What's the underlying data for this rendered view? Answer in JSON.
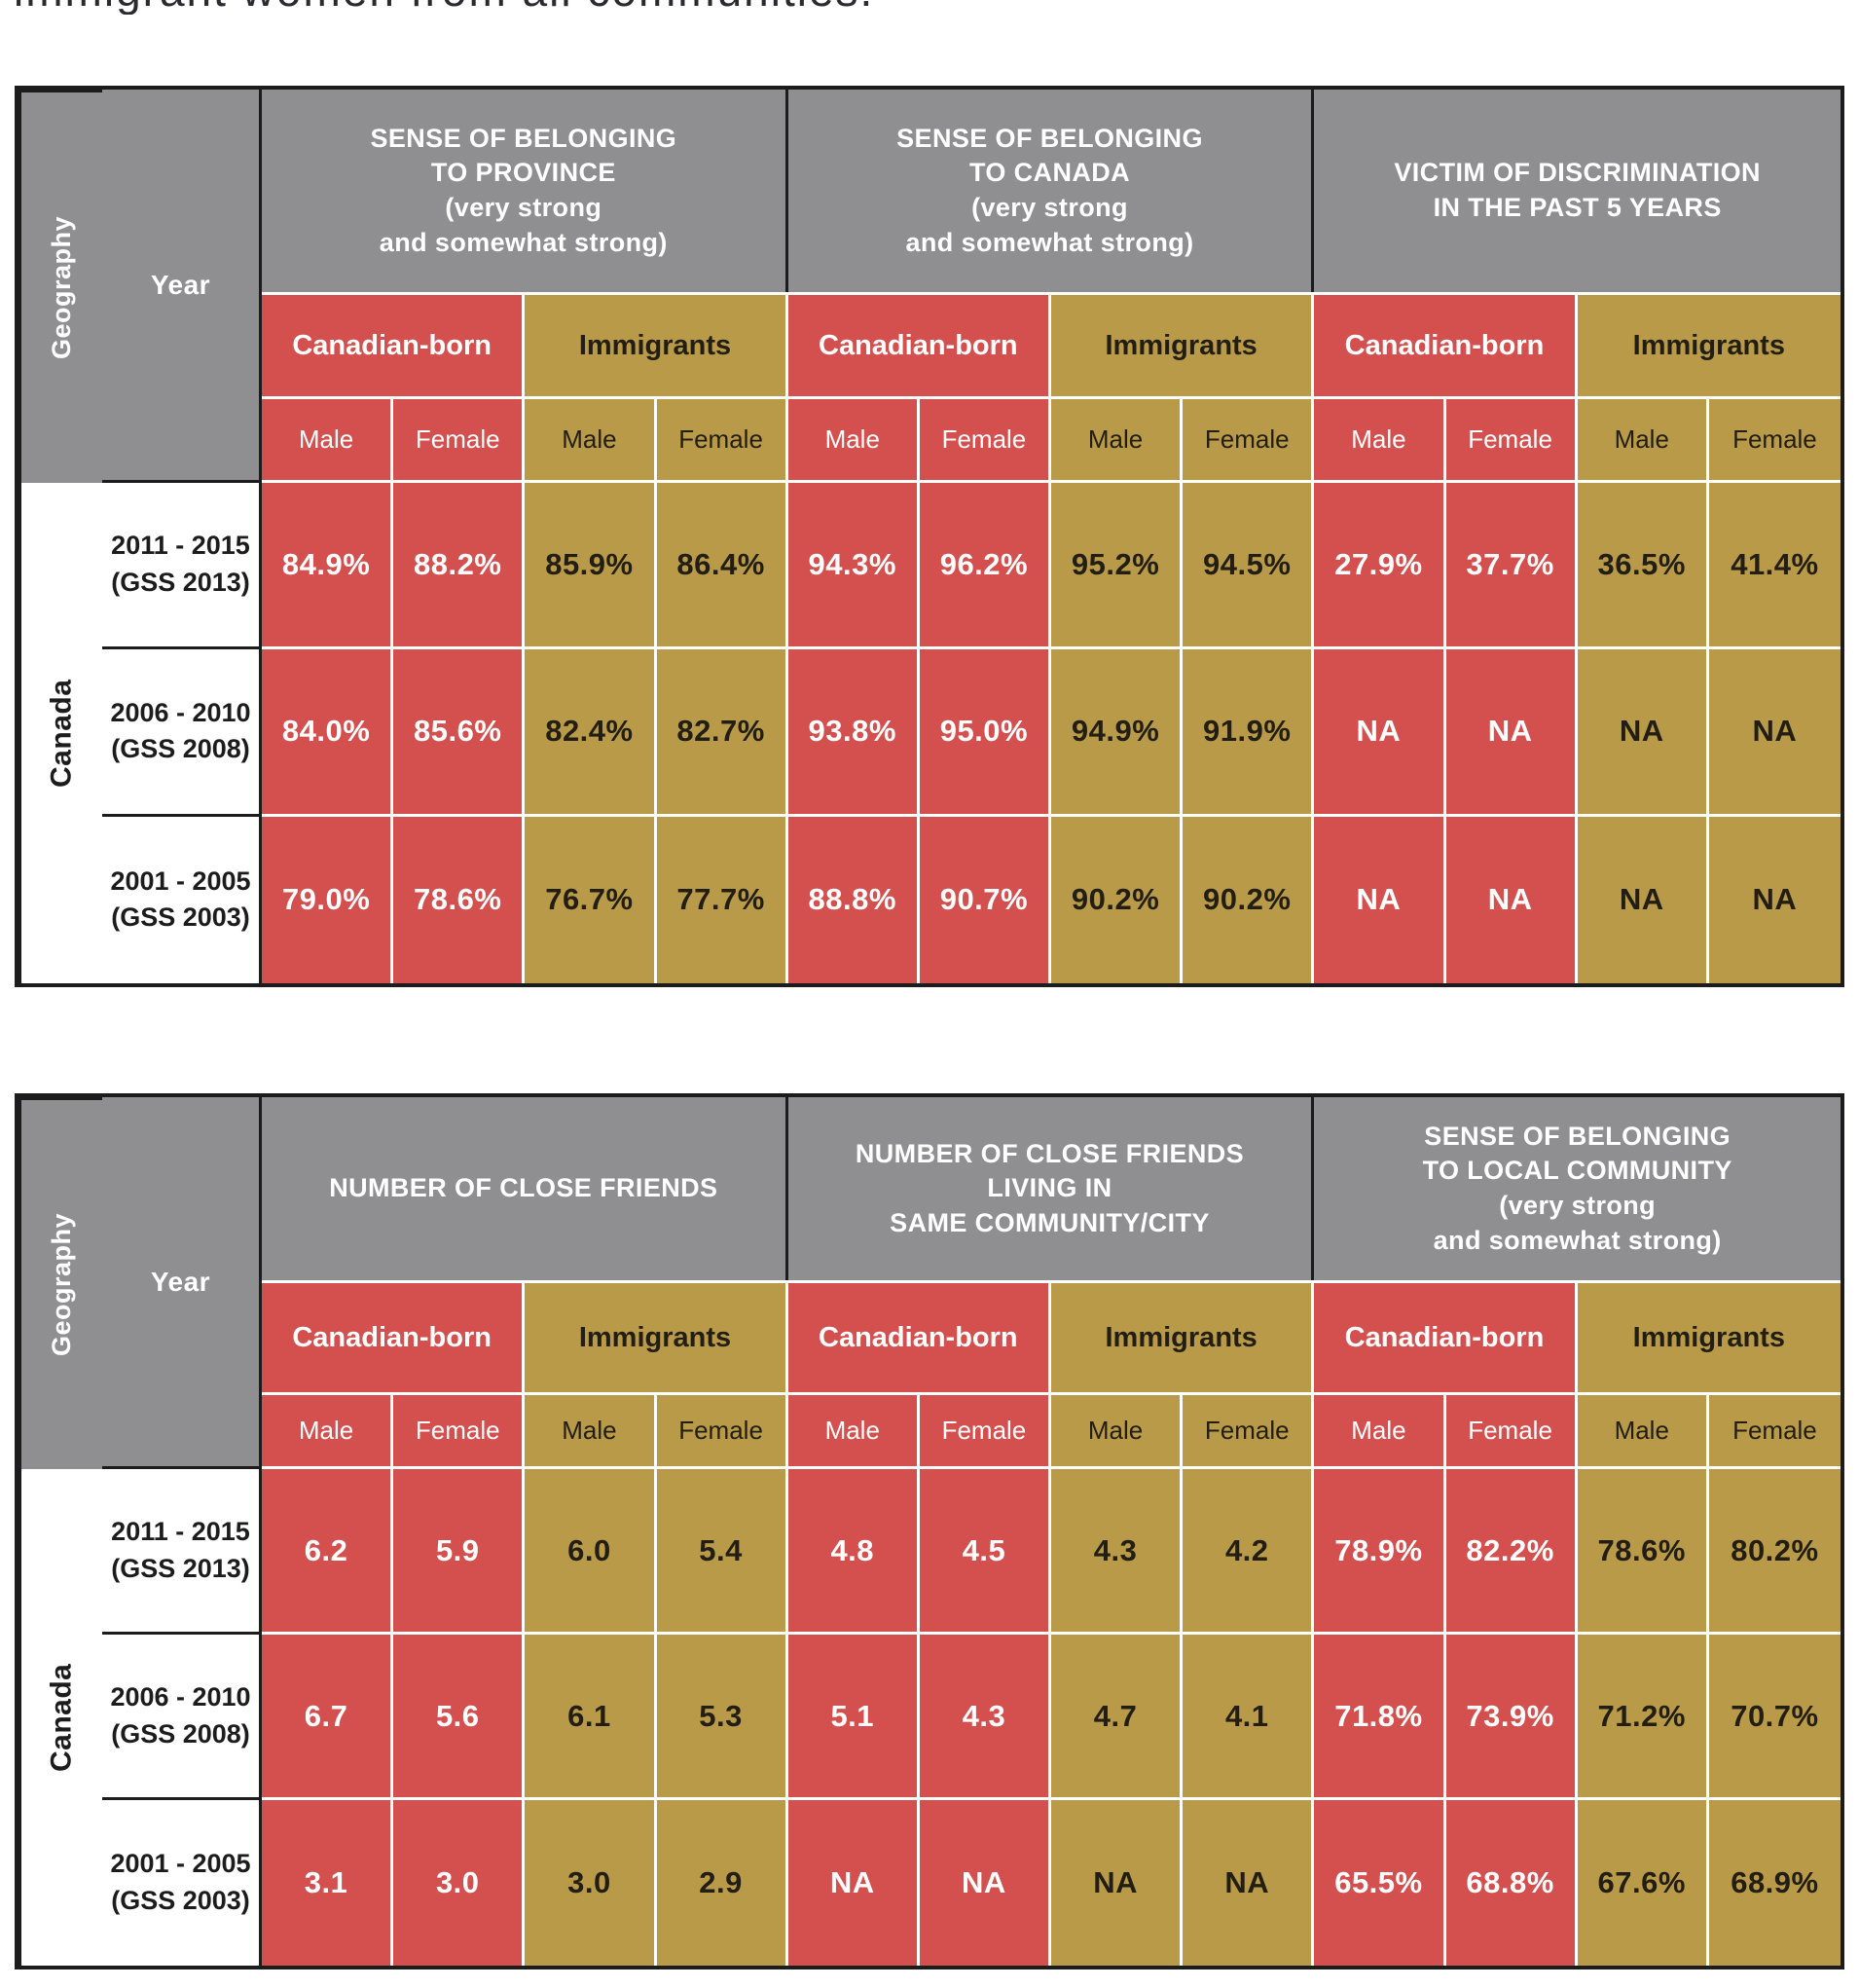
{
  "intro_text": "immigrant women from all communities.",
  "colors": {
    "header_gray": "#8F8E90",
    "canadian_born_red": "#D3504E",
    "immigrants_gold": "#B89A48",
    "grid_black": "#1C1C1C",
    "divider_white": "#FFFFFF"
  },
  "shared": {
    "geography_header": "Geography",
    "year_header": "Year",
    "geography_value": "Canada",
    "origin_labels": [
      "Canadian-born",
      "Immigrants"
    ],
    "sex_labels": [
      "Male",
      "Female"
    ]
  },
  "tables": [
    {
      "groups": [
        "SENSE OF BELONGING\nTO PROVINCE\n(very strong\nand somewhat strong)",
        "SENSE OF BELONGING\nTO CANADA\n(very strong\nand somewhat strong)",
        "VICTIM OF DISCRIMINATION\nIN THE PAST 5 YEARS"
      ],
      "rows": [
        {
          "year": "2011 - 2015\n(GSS 2013)",
          "values": [
            "84.9%",
            "88.2%",
            "85.9%",
            "86.4%",
            "94.3%",
            "96.2%",
            "95.2%",
            "94.5%",
            "27.9%",
            "37.7%",
            "36.5%",
            "41.4%"
          ]
        },
        {
          "year": "2006 - 2010\n(GSS 2008)",
          "values": [
            "84.0%",
            "85.6%",
            "82.4%",
            "82.7%",
            "93.8%",
            "95.0%",
            "94.9%",
            "91.9%",
            "NA",
            "NA",
            "NA",
            "NA"
          ]
        },
        {
          "year": "2001 - 2005\n(GSS 2003)",
          "values": [
            "79.0%",
            "78.6%",
            "76.7%",
            "77.7%",
            "88.8%",
            "90.7%",
            "90.2%",
            "90.2%",
            "NA",
            "NA",
            "NA",
            "NA"
          ]
        }
      ]
    },
    {
      "groups": [
        "NUMBER OF CLOSE FRIENDS",
        "NUMBER OF CLOSE FRIENDS\nLIVING IN\nSAME COMMUNITY/CITY",
        "SENSE OF BELONGING\nTO LOCAL COMMUNITY\n(very strong\nand somewhat strong)"
      ],
      "rows": [
        {
          "year": "2011 - 2015\n(GSS 2013)",
          "values": [
            "6.2",
            "5.9",
            "6.0",
            "5.4",
            "4.8",
            "4.5",
            "4.3",
            "4.2",
            "78.9%",
            "82.2%",
            "78.6%",
            "80.2%"
          ]
        },
        {
          "year": "2006 - 2010\n(GSS 2008)",
          "values": [
            "6.7",
            "5.6",
            "6.1",
            "5.3",
            "5.1",
            "4.3",
            "4.7",
            "4.1",
            "71.8%",
            "73.9%",
            "71.2%",
            "70.7%"
          ]
        },
        {
          "year": "2001 - 2005\n(GSS 2003)",
          "values": [
            "3.1",
            "3.0",
            "3.0",
            "2.9",
            "NA",
            "NA",
            "NA",
            "NA",
            "65.5%",
            "68.8%",
            "67.6%",
            "68.9%"
          ]
        }
      ]
    }
  ]
}
